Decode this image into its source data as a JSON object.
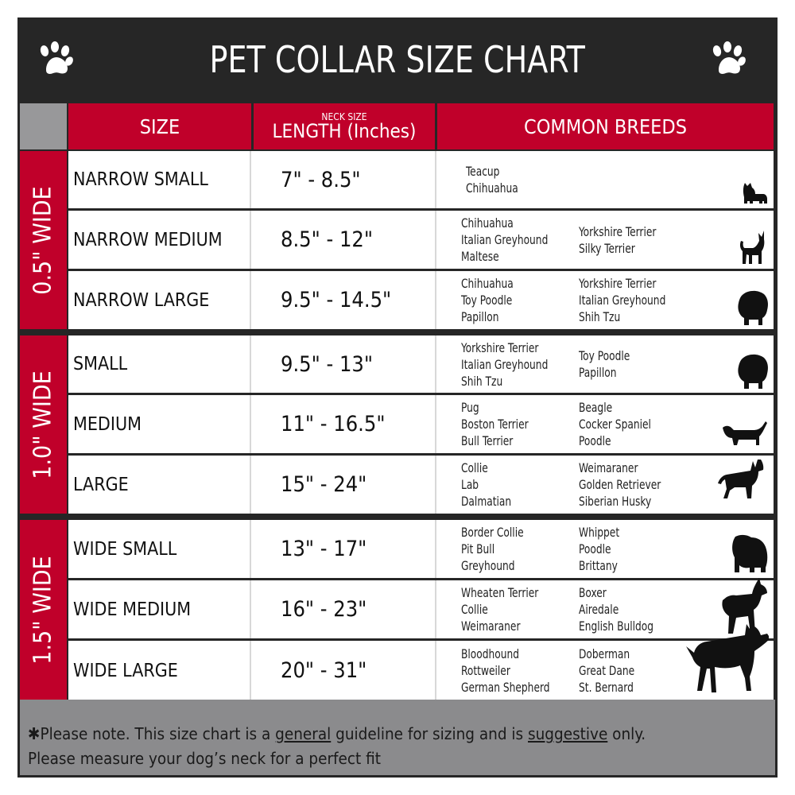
{
  "title": "PET COLLAR SIZE CHART",
  "icons": {
    "left": "paw-icon",
    "right": "paw-icon"
  },
  "colors": {
    "red": "#c0002a",
    "dark": "#262626",
    "gray": "#8b8b8d"
  },
  "headers": {
    "size": "SIZE",
    "length_small": "NECK SIZE",
    "length": "LENGTH (Inches)",
    "breeds": "COMMON BREEDS"
  },
  "groups": [
    {
      "label": "0.5\" WIDE",
      "rows": [
        {
          "size": "NARROW SMALL",
          "length": "7\" - 8.5\"",
          "col1": [
            "Teacup",
            "Chihuahua"
          ],
          "col2": [],
          "icon": "yorkie-silhouette-icon"
        },
        {
          "size": "NARROW MEDIUM",
          "length": "8.5\" - 12\"",
          "col1": [
            "Chihuahua",
            "Italian Greyhound",
            "Maltese"
          ],
          "col2": [
            "Yorkshire Terrier",
            "Silky Terrier"
          ],
          "icon": "chihuahua-silhouette-icon"
        },
        {
          "size": "NARROW LARGE",
          "length": "9.5\" - 14.5\"",
          "col1": [
            "Chihuahua",
            "Toy Poodle",
            "Papillon"
          ],
          "col2": [
            "Yorkshire Terrier",
            "Italian Greyhound",
            "Shih Tzu"
          ],
          "icon": "pomeranian-silhouette-icon"
        }
      ]
    },
    {
      "label": "1.0\" WIDE",
      "rows": [
        {
          "size": "SMALL",
          "length": "9.5\" - 13\"",
          "col1": [
            "Yorkshire Terrier",
            "Italian Greyhound",
            "Shih Tzu"
          ],
          "col2": [
            "Toy Poodle",
            "Papillon"
          ],
          "icon": "pomeranian-silhouette-icon"
        },
        {
          "size": "MEDIUM",
          "length": "11\" - 16.5\"",
          "col1": [
            "Pug",
            "Boston Terrier",
            "Bull Terrier"
          ],
          "col2": [
            "Beagle",
            "Cocker Spaniel",
            "Poodle"
          ],
          "icon": "dachshund-silhouette-icon"
        },
        {
          "size": "LARGE",
          "length": "15\" - 24\"",
          "col1": [
            "Collie",
            "Lab",
            "Dalmatian"
          ],
          "col2": [
            "Weimaraner",
            "Golden Retriever",
            "Siberian Husky"
          ],
          "icon": "shepherd-silhouette-icon"
        }
      ]
    },
    {
      "label": "1.5\" WIDE",
      "rows": [
        {
          "size": "WIDE SMALL",
          "length": "13\" - 17\"",
          "col1": [
            "Border Collie",
            "Pit Bull",
            "Greyhound"
          ],
          "col2": [
            "Whippet",
            "Poodle",
            "Brittany"
          ],
          "icon": "bulldog-silhouette-icon"
        },
        {
          "size": "WIDE MEDIUM",
          "length": "16\" - 23\"",
          "col1": [
            "Wheaten Terrier",
            "Collie",
            "Weimaraner"
          ],
          "col2": [
            "Boxer",
            "Airedale",
            "English Bulldog"
          ],
          "icon": "pitbull-silhouette-icon"
        },
        {
          "size": "WIDE LARGE",
          "length": "20\" - 31\"",
          "col1": [
            "Bloodhound",
            "Rottweiler",
            "German Shepherd"
          ],
          "col2": [
            "Doberman",
            "Great Dane",
            "St. Bernard"
          ],
          "icon": "doberman-silhouette-icon"
        }
      ]
    }
  ],
  "footer": {
    "p1": "✱Please note. This size chart is a ",
    "u1": "general",
    "p2": " guideline for sizing and is ",
    "u2": "suggestive",
    "p3": " only.",
    "line2": "Please measure your dog’s neck for a perfect fit"
  }
}
